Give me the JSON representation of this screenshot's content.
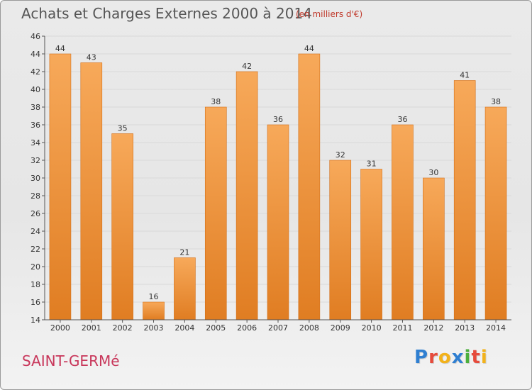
{
  "header": {
    "title": "Achats et Charges Externes 2000 à 2014",
    "unit": "(en milliers d'€)"
  },
  "footer": {
    "commune": "SAINT-GERMé",
    "brand_letters": [
      {
        "ch": "P",
        "color": "#2f7fd1"
      },
      {
        "ch": "r",
        "color": "#e64b3c"
      },
      {
        "ch": "o",
        "color": "#f2b21b"
      },
      {
        "ch": "x",
        "color": "#2f7fd1"
      },
      {
        "ch": "i",
        "color": "#4caf3c"
      },
      {
        "ch": "t",
        "color": "#e64b3c"
      },
      {
        "ch": "i",
        "color": "#f2b21b"
      }
    ]
  },
  "colors": {
    "bar_light": "#f7a95a",
    "bar_dark": "#e07d22",
    "grid": "#d9d9d9",
    "axis": "#555555"
  },
  "chart_data": {
    "type": "bar",
    "categories": [
      "2000",
      "2001",
      "2002",
      "2003",
      "2004",
      "2005",
      "2006",
      "2007",
      "2008",
      "2009",
      "2010",
      "2011",
      "2012",
      "2013",
      "2014"
    ],
    "values": [
      44,
      43,
      35,
      16,
      21,
      38,
      42,
      36,
      44,
      32,
      31,
      36,
      30,
      41,
      38
    ],
    "title": "Achats et Charges Externes 2000 à 2014",
    "xlabel": "",
    "ylabel": "",
    "ylim": [
      14,
      46
    ],
    "yticks": [
      14,
      16,
      18,
      20,
      22,
      24,
      26,
      28,
      30,
      32,
      34,
      36,
      38,
      40,
      42,
      44,
      46
    ],
    "grid": true,
    "legend": "none"
  }
}
